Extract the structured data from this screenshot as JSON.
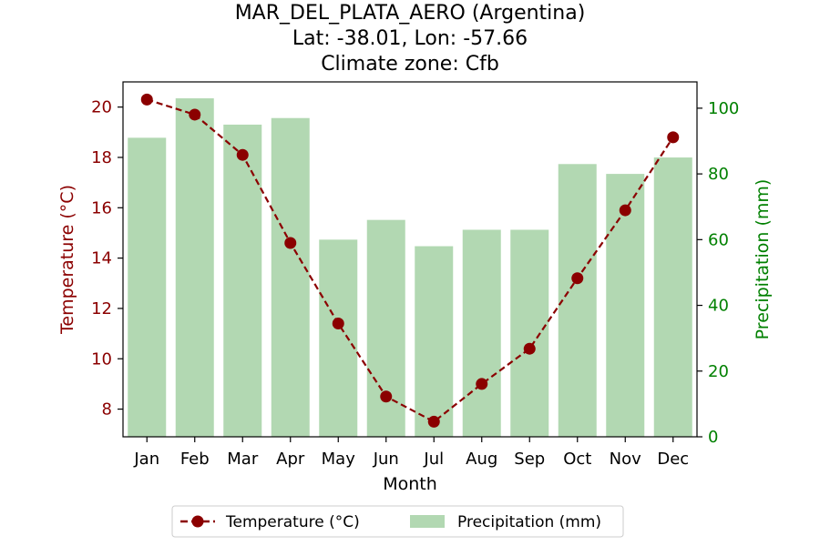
{
  "chart_data": {
    "type": "bar",
    "title_lines": [
      "MAR_DEL_PLATA_AERO (Argentina)",
      "Lat: -38.01, Lon: -57.66",
      "Climate zone: Cfb"
    ],
    "xlabel": "Month",
    "ylabel_left": "Temperature (°C)",
    "ylabel_right": "Precipitation (mm)",
    "categories": [
      "Jan",
      "Feb",
      "Mar",
      "Apr",
      "May",
      "Jun",
      "Jul",
      "Aug",
      "Sep",
      "Oct",
      "Nov",
      "Dec"
    ],
    "series": [
      {
        "name": "Temperature (°C)",
        "type": "line",
        "axis": "left",
        "color": "#8b0000",
        "values": [
          20.3,
          19.7,
          18.1,
          14.6,
          11.4,
          8.5,
          7.5,
          9.0,
          10.4,
          13.2,
          15.9,
          18.8
        ]
      },
      {
        "name": "Precipitation (mm)",
        "type": "bar",
        "axis": "right",
        "color": "#b2d8b2",
        "values": [
          91,
          103,
          95,
          97,
          60,
          66,
          58,
          63,
          63,
          83,
          80,
          85
        ]
      }
    ],
    "ylim_left": [
      6.9,
      21.0
    ],
    "ylim_right": [
      0,
      108
    ],
    "yticks_left": [
      8,
      10,
      12,
      14,
      16,
      18,
      20
    ],
    "yticks_right": [
      0,
      20,
      40,
      60,
      80,
      100
    ],
    "left_axis_color": "#8b0000",
    "right_axis_color": "#008000",
    "grid": false,
    "legend_position": "bottom-center"
  }
}
